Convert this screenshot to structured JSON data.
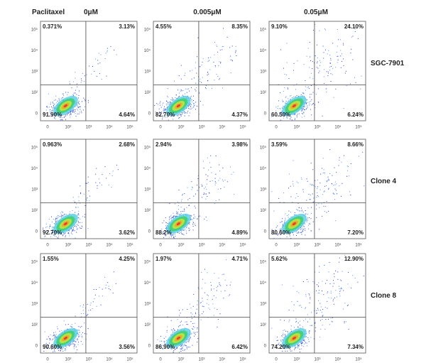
{
  "header": {
    "label": "Paclitaxel",
    "columns": [
      "0μM",
      "0.005μM",
      "0.05μM"
    ]
  },
  "axis_ticks": {
    "x": [
      "0",
      "10²",
      "10³",
      "10⁴",
      "10⁵"
    ],
    "y": [
      "10⁵",
      "10⁴",
      "10³",
      "10²",
      "0"
    ]
  },
  "rows": [
    {
      "label": "SGC-7901",
      "panels": [
        {
          "upper_left": "0.371%",
          "upper_right": "3.13%",
          "lower_left": "91.90%",
          "lower_right": "4.64%"
        },
        {
          "upper_left": "4.55%",
          "upper_right": "8.35%",
          "lower_left": "82.70%",
          "lower_right": "4.37%"
        },
        {
          "upper_left": "9.10%",
          "upper_right": "24.10%",
          "lower_left": "60.50%",
          "lower_right": "6.24%"
        }
      ]
    },
    {
      "label": "Clone 4",
      "panels": [
        {
          "upper_left": "0.963%",
          "upper_right": "2.68%",
          "lower_left": "92.70%",
          "lower_right": "3.62%"
        },
        {
          "upper_left": "2.94%",
          "upper_right": "3.98%",
          "lower_left": "88.2%",
          "lower_right": "4.89%"
        },
        {
          "upper_left": "3.59%",
          "upper_right": "8.66%",
          "lower_left": "80.60%",
          "lower_right": "7.20%"
        }
      ]
    },
    {
      "label": "Clone 8",
      "panels": [
        {
          "upper_left": "1.55%",
          "upper_right": "4.25%",
          "lower_left": "90.60%",
          "lower_right": "3.56%"
        },
        {
          "upper_left": "1.97%",
          "upper_right": "4.71%",
          "lower_left": "86.90%",
          "lower_right": "6.42%"
        },
        {
          "upper_left": "5.62%",
          "upper_right": "12.90%",
          "lower_left": "74.20%",
          "lower_right": "7.34%"
        }
      ]
    }
  ]
}
